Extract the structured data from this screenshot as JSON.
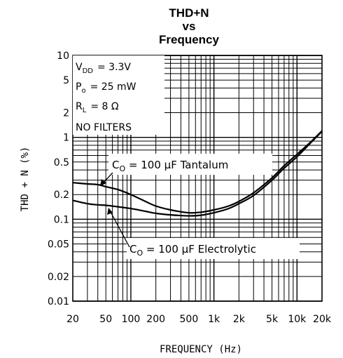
{
  "chart_data": {
    "type": "line",
    "title_lines": [
      "THD+N",
      "vs",
      "Frequency"
    ],
    "xlabel": "FREQUENCY (Hz)",
    "ylabel": "THD + N (%)",
    "x_scale": "log",
    "y_scale": "log",
    "xlim": [
      20,
      20000
    ],
    "ylim": [
      0.01,
      10
    ],
    "x_ticks": [
      20,
      50,
      100,
      200,
      500,
      1000,
      2000,
      5000,
      10000,
      20000
    ],
    "x_tick_labels": [
      "20",
      "50",
      "100",
      "200",
      "500",
      "1k",
      "2k",
      "5k",
      "10k",
      "20k"
    ],
    "y_ticks": [
      0.01,
      0.02,
      0.05,
      0.1,
      0.2,
      0.5,
      1,
      2,
      5,
      10
    ],
    "y_tick_labels": [
      "0.01",
      "0.02",
      "0.05",
      "0.1",
      "0.2",
      "0.5",
      "1",
      "2",
      "5",
      "10"
    ],
    "grid": true,
    "conditions": {
      "vdd": {
        "sym": "V",
        "sub": "DD",
        "val": "= 3.3V"
      },
      "po": {
        "sym": "P",
        "sub": "o",
        "val": "= 25 mW"
      },
      "rl": {
        "sym": "R",
        "sub": "L",
        "val": "= 8 Ω"
      },
      "filters": "NO FILTERS"
    },
    "annotations": {
      "tantalum": {
        "sym": "C",
        "sub": "O",
        "val": " = 100 μF Tantalum"
      },
      "electrolytic": {
        "sym": "C",
        "sub": "O",
        "val": " = 100 μF Electrolytic"
      }
    },
    "series": [
      {
        "x": [
          20,
          30,
          40,
          50,
          70,
          100,
          150,
          200,
          300,
          500,
          700,
          1000,
          1500,
          2000,
          3000,
          5000,
          7000,
          10000,
          15000,
          20000
        ],
        "values": [
          0.28,
          0.27,
          0.265,
          0.25,
          0.23,
          0.2,
          0.165,
          0.145,
          0.13,
          0.12,
          0.122,
          0.13,
          0.145,
          0.165,
          0.21,
          0.32,
          0.45,
          0.62,
          0.9,
          1.2
        ]
      },
      {
        "x": [
          20,
          30,
          40,
          50,
          70,
          100,
          150,
          200,
          300,
          500,
          700,
          1000,
          1500,
          2000,
          3000,
          5000,
          7000,
          10000,
          15000,
          20000
        ],
        "values": [
          0.17,
          0.155,
          0.15,
          0.148,
          0.142,
          0.135,
          0.125,
          0.118,
          0.113,
          0.11,
          0.112,
          0.12,
          0.135,
          0.155,
          0.195,
          0.3,
          0.42,
          0.58,
          0.88,
          1.18
        ]
      }
    ]
  }
}
